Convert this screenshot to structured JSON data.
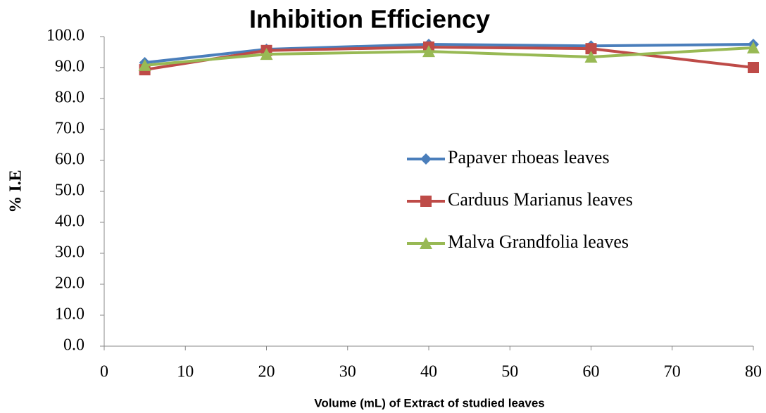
{
  "chart_data": {
    "type": "line",
    "title": "Inhibition Efficiency",
    "x_label": "Volume (mL) of Extract of studied leaves",
    "y_label": "% I.E",
    "x": [
      5,
      20,
      40,
      60,
      80
    ],
    "series": [
      {
        "name": "Papaver rhoeas leaves",
        "color": "#4a7ebb",
        "marker": "diamond",
        "values": [
          91.6,
          95.9,
          97.5,
          97.0,
          97.5
        ]
      },
      {
        "name": "Carduus Marianus leaves",
        "color": "#be4b48",
        "marker": "square",
        "values": [
          89.3,
          95.5,
          96.6,
          96.1,
          90.0
        ]
      },
      {
        "name": "Malva Grandfolia leaves",
        "color": "#98b954",
        "marker": "triangle",
        "values": [
          90.7,
          94.3,
          95.2,
          93.4,
          96.4
        ]
      }
    ],
    "xlim": [
      0,
      80
    ],
    "xticks": [
      0,
      10,
      20,
      30,
      40,
      50,
      60,
      70,
      80
    ],
    "ylim": [
      0,
      100
    ],
    "yticks": [
      {
        "value": 0,
        "label": "0.0"
      },
      {
        "value": 10,
        "label": "10.0"
      },
      {
        "value": 20,
        "label": "20.0"
      },
      {
        "value": 30,
        "label": "30.0"
      },
      {
        "value": 40,
        "label": "40.0"
      },
      {
        "value": 50,
        "label": "50.0"
      },
      {
        "value": 60,
        "label": "60.0"
      },
      {
        "value": 70,
        "label": "70.0"
      },
      {
        "value": 80,
        "label": "80.0"
      },
      {
        "value": 90,
        "label": "90.0"
      },
      {
        "value": 100,
        "label": "100.0"
      }
    ],
    "grid": false
  }
}
